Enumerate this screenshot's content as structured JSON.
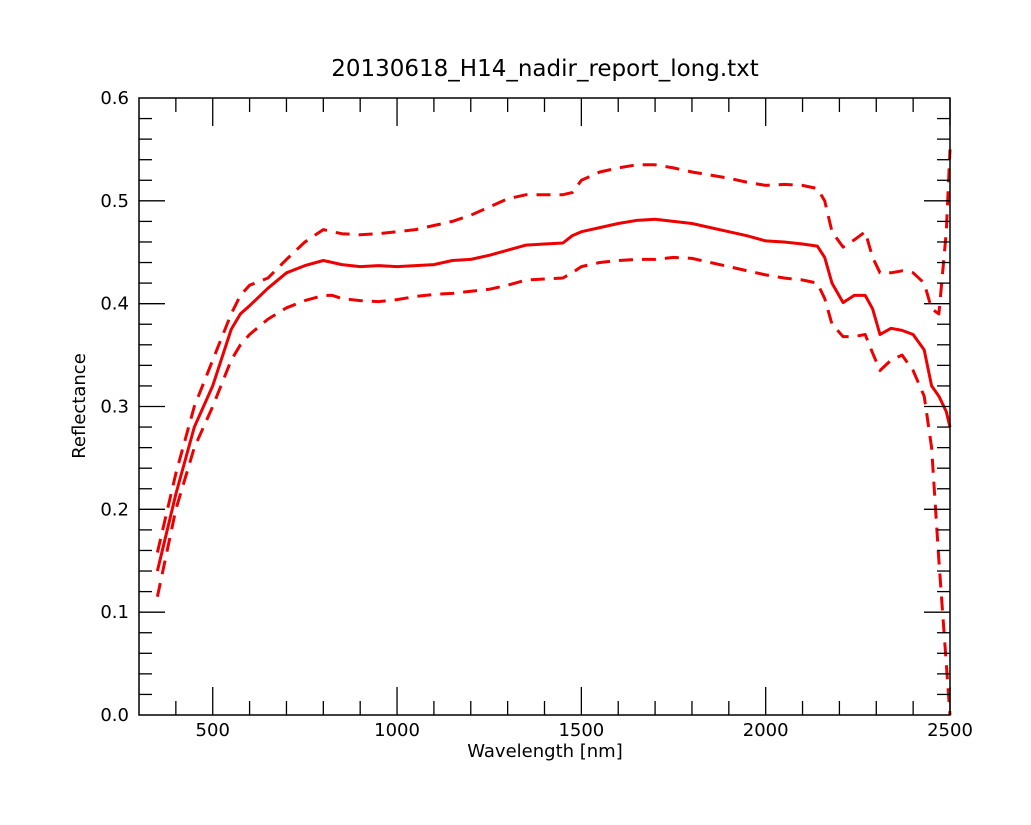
{
  "chart_data": {
    "type": "line",
    "title": "20130618_H14_nadir_report_long.txt",
    "xlabel": "Wavelength [nm]",
    "ylabel": "Reflectance",
    "xlim": [
      300,
      2500
    ],
    "ylim": [
      0.0,
      0.6
    ],
    "x_ticks": [
      500,
      1000,
      1500,
      2000,
      2500
    ],
    "x_tick_labels": [
      "500",
      "1000",
      "1500",
      "2000",
      "2500"
    ],
    "y_ticks": [
      0.0,
      0.1,
      0.2,
      0.3,
      0.4,
      0.5,
      0.6
    ],
    "y_tick_labels": [
      "0.0",
      "0.1",
      "0.2",
      "0.3",
      "0.4",
      "0.5",
      "0.6"
    ],
    "grid": false,
    "legend": "none",
    "line_color": "#ee0000",
    "x": [
      350,
      400,
      450,
      500,
      550,
      575,
      600,
      650,
      700,
      750,
      800,
      825,
      850,
      900,
      950,
      1000,
      1050,
      1100,
      1150,
      1200,
      1250,
      1300,
      1350,
      1400,
      1450,
      1475,
      1500,
      1550,
      1600,
      1650,
      1700,
      1750,
      1800,
      1850,
      1900,
      1950,
      2000,
      2050,
      2100,
      2140,
      2160,
      2180,
      2210,
      2240,
      2270,
      2290,
      2310,
      2340,
      2370,
      2400,
      2430,
      2450,
      2470,
      2490,
      2500
    ],
    "series": [
      {
        "style": "solid",
        "values": [
          0.14,
          0.215,
          0.28,
          0.32,
          0.375,
          0.39,
          0.398,
          0.415,
          0.43,
          0.437,
          0.442,
          0.44,
          0.438,
          0.436,
          0.437,
          0.436,
          0.437,
          0.438,
          0.442,
          0.443,
          0.447,
          0.452,
          0.457,
          0.458,
          0.459,
          0.466,
          0.47,
          0.474,
          0.478,
          0.481,
          0.482,
          0.48,
          0.478,
          0.474,
          0.47,
          0.466,
          0.461,
          0.46,
          0.458,
          0.456,
          0.445,
          0.42,
          0.401,
          0.408,
          0.408,
          0.395,
          0.37,
          0.376,
          0.374,
          0.37,
          0.355,
          0.32,
          0.31,
          0.295,
          0.28
        ]
      },
      {
        "style": "dashed",
        "values": [
          0.158,
          0.235,
          0.3,
          0.345,
          0.39,
          0.408,
          0.418,
          0.425,
          0.443,
          0.46,
          0.472,
          0.47,
          0.468,
          0.467,
          0.468,
          0.47,
          0.472,
          0.476,
          0.48,
          0.486,
          0.494,
          0.502,
          0.506,
          0.506,
          0.506,
          0.508,
          0.52,
          0.528,
          0.532,
          0.535,
          0.535,
          0.532,
          0.528,
          0.525,
          0.522,
          0.518,
          0.515,
          0.516,
          0.515,
          0.512,
          0.5,
          0.47,
          0.455,
          0.462,
          0.47,
          0.445,
          0.43,
          0.43,
          0.432,
          0.43,
          0.42,
          0.395,
          0.39,
          0.47,
          0.55
        ]
      },
      {
        "style": "dashed",
        "values": [
          0.115,
          0.2,
          0.26,
          0.3,
          0.345,
          0.36,
          0.37,
          0.385,
          0.396,
          0.403,
          0.408,
          0.408,
          0.405,
          0.403,
          0.402,
          0.404,
          0.407,
          0.409,
          0.41,
          0.412,
          0.414,
          0.418,
          0.423,
          0.424,
          0.425,
          0.43,
          0.436,
          0.44,
          0.442,
          0.443,
          0.443,
          0.445,
          0.444,
          0.44,
          0.436,
          0.432,
          0.428,
          0.425,
          0.423,
          0.42,
          0.405,
          0.38,
          0.368,
          0.368,
          0.37,
          0.352,
          0.335,
          0.345,
          0.35,
          0.335,
          0.31,
          0.26,
          0.15,
          0.05,
          0.0
        ]
      }
    ]
  }
}
